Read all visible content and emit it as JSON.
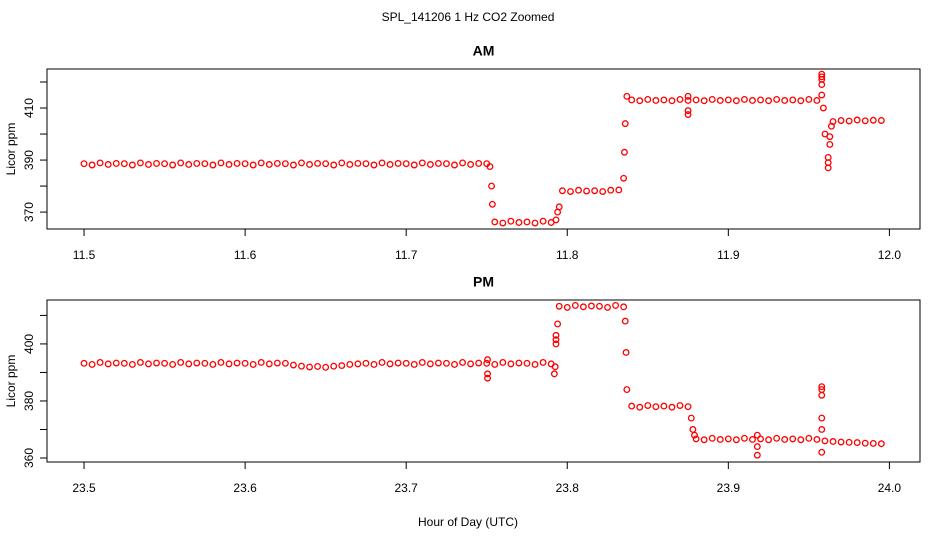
{
  "title": "SPL_141206  1 Hz CO2 Zoomed",
  "x_label": "Hour of Day (UTC)",
  "chart_data": [
    {
      "type": "scatter",
      "title": "AM",
      "y_label": "Licor ppm",
      "color": "#ff0000",
      "xlim": [
        11.477,
        12.019
      ],
      "ylim": [
        363.5,
        425
      ],
      "xticks": [
        11.5,
        11.6,
        11.7,
        11.8,
        11.9,
        {
          "value": 12,
          "label": "12.0"
        }
      ],
      "yticks": [
        370,
        {
          "value": 380,
          "label": null
        },
        390,
        {
          "value": 400,
          "label": null
        },
        410,
        {
          "value": 420,
          "label": null
        }
      ],
      "x": [
        11.5,
        11.505,
        11.51,
        11.515,
        11.52,
        11.525,
        11.53,
        11.535,
        11.54,
        11.545,
        11.55,
        11.555,
        11.56,
        11.565,
        11.57,
        11.575,
        11.58,
        11.585,
        11.59,
        11.595,
        11.6,
        11.605,
        11.61,
        11.615,
        11.62,
        11.625,
        11.63,
        11.635,
        11.64,
        11.645,
        11.65,
        11.655,
        11.66,
        11.665,
        11.67,
        11.675,
        11.68,
        11.685,
        11.69,
        11.695,
        11.7,
        11.705,
        11.71,
        11.715,
        11.72,
        11.725,
        11.73,
        11.735,
        11.74,
        11.745,
        11.75,
        11.752,
        11.753,
        11.7535,
        11.755,
        11.76,
        11.765,
        11.77,
        11.775,
        11.78,
        11.785,
        11.79,
        11.793,
        11.794,
        11.795,
        11.797,
        11.802,
        11.807,
        11.812,
        11.817,
        11.822,
        11.827,
        11.832,
        11.835,
        11.8355,
        11.836,
        11.837,
        11.84,
        11.845,
        11.85,
        11.855,
        11.86,
        11.865,
        11.87,
        11.875,
        11.875,
        11.875,
        11.875,
        11.88,
        11.885,
        11.89,
        11.895,
        11.9,
        11.905,
        11.91,
        11.915,
        11.92,
        11.925,
        11.93,
        11.935,
        11.94,
        11.945,
        11.95,
        11.955,
        11.958,
        11.958,
        11.958,
        11.958,
        11.958,
        11.959,
        11.96,
        11.962,
        11.962,
        11.962,
        11.963,
        11.963,
        11.964,
        11.965,
        11.97,
        11.975,
        11.98,
        11.985,
        11.99,
        11.995
      ],
      "values": [
        388.6,
        388.1,
        388.9,
        388.3,
        388.7,
        388.6,
        388.1,
        388.9,
        388.3,
        388.7,
        388.6,
        388.1,
        388.9,
        388.3,
        388.7,
        388.6,
        388.1,
        388.9,
        388.3,
        388.7,
        388.6,
        388.1,
        388.9,
        388.3,
        388.7,
        388.6,
        388.1,
        388.9,
        388.3,
        388.7,
        388.6,
        388.1,
        388.9,
        388.3,
        388.7,
        388.6,
        388.1,
        388.9,
        388.3,
        388.7,
        388.6,
        388.1,
        388.9,
        388.3,
        388.7,
        388.6,
        388.1,
        388.9,
        388.3,
        388.7,
        388.6,
        387.5,
        380,
        373,
        366.2,
        365.8,
        366.5,
        366.0,
        366.2,
        365.8,
        366.5,
        366.0,
        367,
        370,
        372,
        378.2,
        377.9,
        378.4,
        378.1,
        378.2,
        377.9,
        378.4,
        378.5,
        383,
        393,
        404,
        414.5,
        413.1,
        412.8,
        413.3,
        412.9,
        413.1,
        412.8,
        413.3,
        412.9,
        409,
        407.5,
        414.5,
        413.1,
        412.8,
        413.3,
        412.9,
        413.1,
        412.8,
        413.3,
        412.9,
        413.1,
        412.8,
        413.3,
        412.9,
        413.1,
        412.8,
        413.3,
        412.9,
        423,
        422,
        421,
        419,
        415,
        410,
        400,
        391,
        389,
        387,
        396,
        399,
        403,
        404.8,
        405.2,
        405.0,
        405.4,
        405.1,
        405.3,
        405.2
      ]
    },
    {
      "type": "scatter",
      "title": "PM",
      "y_label": "Licor ppm",
      "color": "#ff0000",
      "xlim": [
        23.477,
        24.019
      ],
      "ylim": [
        358.6,
        415.4
      ],
      "xticks": [
        23.5,
        23.6,
        23.7,
        23.8,
        23.9,
        {
          "value": 24,
          "label": "24.0"
        }
      ],
      "yticks": [
        360,
        {
          "value": 370,
          "label": null
        },
        380,
        {
          "value": 390,
          "label": null
        },
        400,
        {
          "value": 410,
          "label": null
        }
      ],
      "x": [
        23.5,
        23.505,
        23.51,
        23.515,
        23.52,
        23.525,
        23.53,
        23.535,
        23.54,
        23.545,
        23.55,
        23.555,
        23.56,
        23.565,
        23.57,
        23.575,
        23.58,
        23.585,
        23.59,
        23.595,
        23.6,
        23.605,
        23.61,
        23.615,
        23.62,
        23.625,
        23.63,
        23.635,
        23.64,
        23.645,
        23.65,
        23.655,
        23.66,
        23.665,
        23.67,
        23.675,
        23.68,
        23.685,
        23.69,
        23.695,
        23.7,
        23.705,
        23.71,
        23.715,
        23.72,
        23.725,
        23.73,
        23.735,
        23.74,
        23.745,
        23.75,
        23.7505,
        23.7505,
        23.7505,
        23.755,
        23.76,
        23.765,
        23.77,
        23.775,
        23.78,
        23.785,
        23.79,
        23.792,
        23.7925,
        23.793,
        23.793,
        23.793,
        23.794,
        23.795,
        23.8,
        23.805,
        23.81,
        23.815,
        23.82,
        23.825,
        23.83,
        23.835,
        23.836,
        23.8365,
        23.837,
        23.84,
        23.845,
        23.85,
        23.855,
        23.86,
        23.865,
        23.87,
        23.875,
        23.877,
        23.878,
        23.879,
        23.88,
        23.885,
        23.89,
        23.895,
        23.9,
        23.905,
        23.91,
        23.915,
        23.918,
        23.918,
        23.918,
        23.92,
        23.925,
        23.93,
        23.935,
        23.94,
        23.945,
        23.95,
        23.955,
        23.958,
        23.958,
        23.958,
        23.958,
        23.958,
        23.958,
        23.96,
        23.965,
        23.97,
        23.975,
        23.98,
        23.985,
        23.99,
        23.995
      ],
      "values": [
        393.2,
        392.8,
        393.5,
        393.0,
        393.3,
        393.2,
        392.8,
        393.5,
        393.0,
        393.3,
        393.2,
        392.8,
        393.5,
        393.0,
        393.3,
        393.2,
        392.8,
        393.5,
        393.0,
        393.3,
        393.2,
        392.8,
        393.5,
        393.0,
        393.3,
        393.2,
        392.6,
        392.2,
        391.9,
        392.1,
        391.8,
        392.2,
        392.4,
        392.8,
        393.0,
        393.2,
        392.8,
        393.5,
        393.0,
        393.3,
        393.2,
        392.8,
        393.5,
        393.0,
        393.3,
        393.2,
        392.8,
        393.5,
        393.0,
        393.3,
        393.2,
        388,
        389.5,
        394.5,
        392.8,
        393.5,
        393.0,
        393.3,
        393.2,
        392.8,
        393.5,
        393.0,
        389.5,
        392,
        400,
        401.5,
        403,
        407,
        413.2,
        412.8,
        413.5,
        413.0,
        413.3,
        413.2,
        412.8,
        413.5,
        413.0,
        408,
        397,
        384,
        378.2,
        377.8,
        378.4,
        378.0,
        378.2,
        377.8,
        378.4,
        378.0,
        374,
        370,
        368,
        366.7,
        366.4,
        366.9,
        366.5,
        366.7,
        366.4,
        366.9,
        366.5,
        361,
        364,
        368,
        366.7,
        366.4,
        366.9,
        366.5,
        366.7,
        366.4,
        366.9,
        366.5,
        362,
        370,
        374,
        382,
        384,
        385,
        366.0,
        365.8,
        365.6,
        365.5,
        365.4,
        365.2,
        365.1,
        365.0
      ]
    }
  ]
}
